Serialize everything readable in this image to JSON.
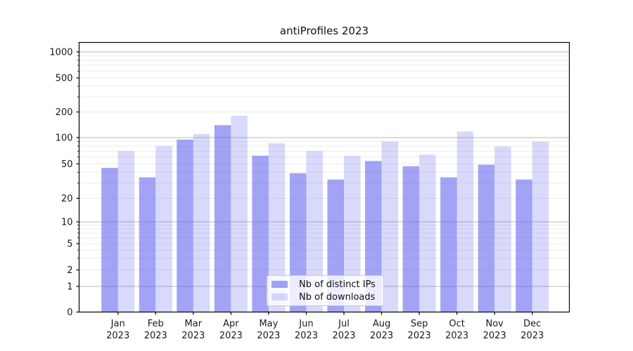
{
  "chart_data": {
    "type": "bar",
    "title": "antiProfiles 2023",
    "categories": [
      "Jan",
      "Feb",
      "Mar",
      "Apr",
      "May",
      "Jun",
      "Jul",
      "Aug",
      "Sep",
      "Oct",
      "Nov",
      "Dec"
    ],
    "x_year": "2023",
    "series": [
      {
        "name": "Nb of distinct IPs",
        "color": "#6666ee",
        "opacity": 0.6,
        "values": [
          45,
          35,
          95,
          140,
          62,
          39,
          33,
          54,
          47,
          35,
          49,
          33
        ]
      },
      {
        "name": "Nb of downloads",
        "color": "#6666ee",
        "opacity": 0.25,
        "values": [
          70,
          80,
          110,
          180,
          86,
          70,
          62,
          90,
          64,
          118,
          79,
          90
        ]
      }
    ],
    "y_ticks": [
      0,
      1,
      2,
      5,
      10,
      20,
      50,
      100,
      200,
      500,
      1000
    ],
    "y_scale": "symlog",
    "ylim": [
      0,
      1000
    ],
    "grid": "on",
    "legend_position": "lower-center"
  }
}
